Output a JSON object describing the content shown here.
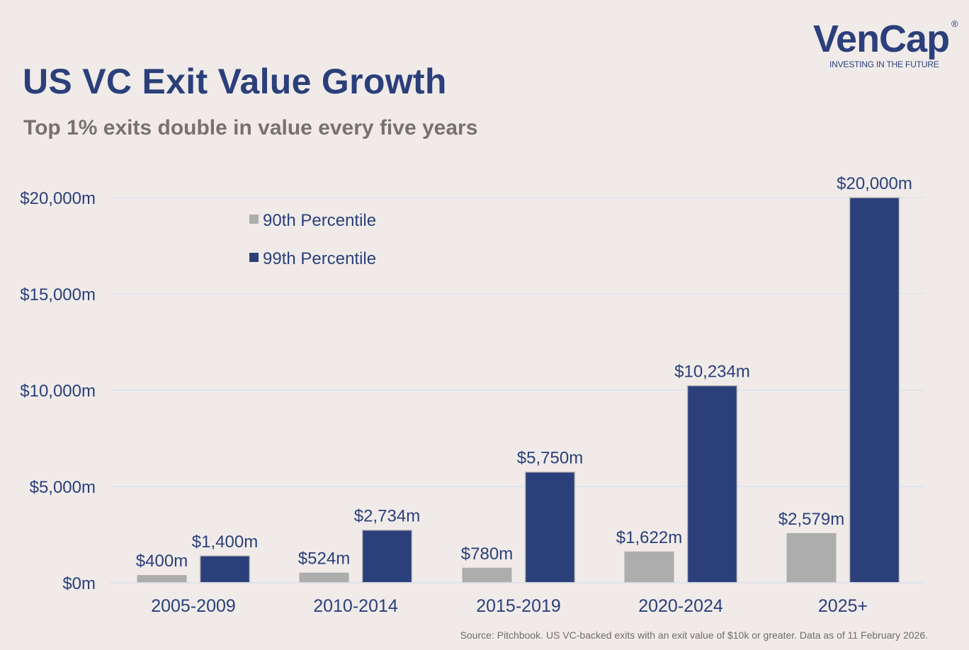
{
  "header": {
    "title": "US VC Exit Value Growth",
    "subtitle": "Top 1% exits double in value every five years"
  },
  "logo": {
    "name": "VenCap",
    "registered_mark": "®",
    "tagline": "INVESTING IN THE FUTURE"
  },
  "source": "Source: Pitchbook.  US VC-backed exits with an exit value of $10k or greater.  Data as of 11 February 2026.",
  "colors": {
    "background": "#f0ebe9",
    "primary": "#2b3f7a",
    "series_90": "#adadad",
    "series_99": "#2b3f7a",
    "gridline": "#dde2ec"
  },
  "chart_data": {
    "type": "bar",
    "title": "US VC Exit Value Growth",
    "subtitle": "Top 1% exits double in value every five years",
    "xlabel": "",
    "ylabel": "",
    "categories": [
      "2005-2009",
      "2010-2014",
      "2015-2019",
      "2020-2024",
      "2025+"
    ],
    "series": [
      {
        "name": "90th Percentile",
        "values": [
          400,
          524,
          780,
          1622,
          2579
        ],
        "labels": [
          "$400m",
          "$524m",
          "$780m",
          "$1,622m",
          "$2,579m"
        ]
      },
      {
        "name": "99th Percentile",
        "values": [
          1400,
          2734,
          5750,
          10234,
          20000
        ],
        "labels": [
          "$1,400m",
          "$2,734m",
          "$5,750m",
          "$10,234m",
          "$20,000m"
        ]
      }
    ],
    "ylim": [
      0,
      20000
    ],
    "yticks": [
      0,
      5000,
      10000,
      15000,
      20000
    ],
    "ytick_labels": [
      "$0m",
      "$5,000m",
      "$10,000m",
      "$15,000m",
      "$20,000m"
    ],
    "grid": true,
    "legend": "top-left"
  }
}
